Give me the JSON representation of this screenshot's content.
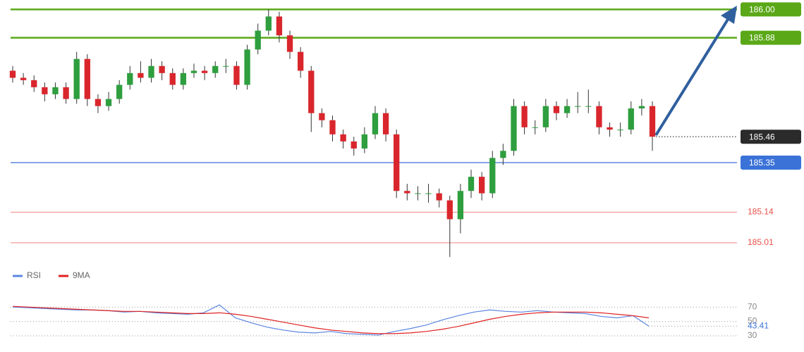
{
  "chart_data": [
    {
      "type": "candlestick",
      "ylim": [
        184.92,
        186.04
      ],
      "up_color": "#2e9e3e",
      "down_color": "#d9262c",
      "candles": [
        [
          185.74,
          185.76,
          185.69,
          185.71
        ],
        [
          185.71,
          185.73,
          185.68,
          185.7
        ],
        [
          185.7,
          185.72,
          185.65,
          185.67
        ],
        [
          185.67,
          185.69,
          185.61,
          185.64
        ],
        [
          185.64,
          185.69,
          185.62,
          185.67
        ],
        [
          185.67,
          185.69,
          185.6,
          185.62
        ],
        [
          185.62,
          185.82,
          185.6,
          185.79
        ],
        [
          185.79,
          185.81,
          185.59,
          185.62
        ],
        [
          185.62,
          185.64,
          185.56,
          185.59
        ],
        [
          185.59,
          185.65,
          185.57,
          185.62
        ],
        [
          185.62,
          185.7,
          185.6,
          185.68
        ],
        [
          185.68,
          185.76,
          185.66,
          185.73
        ],
        [
          185.73,
          185.78,
          185.69,
          185.71
        ],
        [
          185.71,
          185.79,
          185.69,
          185.76
        ],
        [
          185.76,
          185.78,
          185.7,
          185.73
        ],
        [
          185.73,
          185.75,
          185.66,
          185.68
        ],
        [
          185.68,
          185.75,
          185.66,
          185.73
        ],
        [
          185.73,
          185.77,
          185.71,
          185.74
        ],
        [
          185.74,
          185.76,
          185.7,
          185.73
        ],
        [
          185.73,
          185.78,
          185.71,
          185.76
        ],
        [
          185.76,
          185.79,
          185.73,
          185.76
        ],
        [
          185.76,
          185.78,
          185.66,
          185.68
        ],
        [
          185.68,
          185.85,
          185.66,
          185.83
        ],
        [
          185.83,
          185.94,
          185.81,
          185.91
        ],
        [
          185.91,
          186.0,
          185.89,
          185.97
        ],
        [
          185.97,
          185.99,
          185.86,
          185.89
        ],
        [
          185.89,
          185.91,
          185.79,
          185.82
        ],
        [
          185.82,
          185.84,
          185.71,
          185.74
        ],
        [
          185.74,
          185.76,
          185.48,
          185.56
        ],
        [
          185.56,
          185.58,
          185.5,
          185.53
        ],
        [
          185.53,
          185.55,
          185.44,
          185.47
        ],
        [
          185.47,
          185.49,
          185.41,
          185.44
        ],
        [
          185.44,
          185.46,
          185.38,
          185.41
        ],
        [
          185.41,
          185.5,
          185.39,
          185.47
        ],
        [
          185.47,
          185.59,
          185.45,
          185.56
        ],
        [
          185.56,
          185.58,
          185.44,
          185.47
        ],
        [
          185.47,
          185.49,
          185.2,
          185.23
        ],
        [
          185.23,
          185.26,
          185.19,
          185.22
        ],
        [
          185.22,
          185.25,
          185.19,
          185.22
        ],
        [
          185.22,
          185.26,
          185.18,
          185.22
        ],
        [
          185.22,
          185.24,
          185.16,
          185.19
        ],
        [
          185.19,
          185.21,
          184.95,
          185.11
        ],
        [
          185.11,
          185.26,
          185.05,
          185.23
        ],
        [
          185.23,
          185.32,
          185.2,
          185.29
        ],
        [
          185.29,
          185.31,
          185.19,
          185.22
        ],
        [
          185.22,
          185.4,
          185.2,
          185.37
        ],
        [
          185.37,
          185.43,
          185.34,
          185.4
        ],
        [
          185.4,
          185.62,
          185.38,
          185.59
        ],
        [
          185.59,
          185.61,
          185.47,
          185.5
        ],
        [
          185.5,
          185.53,
          185.47,
          185.5
        ],
        [
          185.5,
          185.62,
          185.48,
          185.59
        ],
        [
          185.59,
          185.61,
          185.53,
          185.56
        ],
        [
          185.56,
          185.62,
          185.54,
          185.59
        ],
        [
          185.59,
          185.65,
          185.56,
          185.59
        ],
        [
          185.59,
          185.66,
          185.56,
          185.59
        ],
        [
          185.59,
          185.61,
          185.47,
          185.5
        ],
        [
          185.5,
          185.52,
          185.46,
          185.49
        ],
        [
          185.49,
          185.52,
          185.46,
          185.49
        ],
        [
          185.49,
          185.61,
          185.47,
          185.58
        ],
        [
          185.58,
          185.62,
          185.55,
          185.59
        ],
        [
          185.59,
          185.61,
          185.4,
          185.46
        ]
      ],
      "levels": [
        {
          "value": 186,
          "label": "186.00",
          "color": "#5aa817",
          "style": "box"
        },
        {
          "value": 185.88,
          "label": "185.88",
          "color": "#5aa817",
          "style": "box"
        },
        {
          "value": 185.46,
          "label": "185.46",
          "color": "#2b2b2b",
          "style": "current"
        },
        {
          "value": 185.35,
          "label": "185.35",
          "color": "#3a72d8",
          "style": "box"
        },
        {
          "value": 185.14,
          "label": "185.14",
          "color": "#e8504a",
          "style": "text"
        },
        {
          "value": 185.01,
          "label": "185.01",
          "color": "#e8504a",
          "style": "text"
        }
      ]
    },
    {
      "type": "line",
      "ylim": [
        27,
        80
      ],
      "yticks": [
        70,
        50,
        30
      ],
      "current": 43.41,
      "current_color": "#3a72d8",
      "series": [
        {
          "name": "RSI",
          "color": "#5b86e0",
          "values": [
            70,
            69,
            68,
            67,
            66,
            66,
            65,
            63,
            64,
            62,
            61,
            60,
            62,
            73,
            55,
            48,
            42,
            38,
            35,
            34,
            36,
            33,
            32,
            31,
            36,
            40,
            45,
            52,
            58,
            63,
            66,
            64,
            63,
            65,
            63,
            62,
            61,
            57,
            55,
            58,
            43.41
          ]
        },
        {
          "name": "9MA",
          "color": "#e02020",
          "values": [
            71,
            70,
            69,
            68,
            67,
            66,
            65,
            64,
            64,
            63,
            62,
            61,
            61,
            62,
            60,
            57,
            53,
            49,
            45,
            41,
            38,
            36,
            34,
            33,
            33,
            34,
            36,
            39,
            43,
            48,
            53,
            57,
            60,
            62,
            63,
            63,
            63,
            62,
            60,
            58,
            55
          ]
        }
      ]
    }
  ]
}
